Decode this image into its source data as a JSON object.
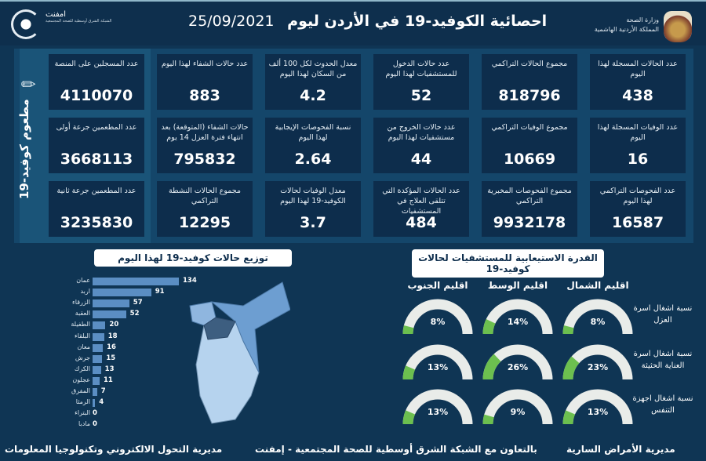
{
  "header": {
    "title": "احصائية الكوفيد-19 في الأردن ليوم",
    "date": "25/09/2021",
    "ministry_line1": "وزارة الصحة",
    "ministry_line2": "المملكة الأردنية الهاشمية",
    "partner_name": "امفنت",
    "partner_sub": "الشبكة الشرق أوسطية للصحة المجتمعية"
  },
  "vaccine_label": "مطعوم كوفيد-19",
  "cards": [
    {
      "label": "عدد الحالات المسجلة لهذا اليوم",
      "value": "438"
    },
    {
      "label": "مجموع الحالات التراكمي",
      "value": "818796"
    },
    {
      "label": "عدد حالات الدخول للمستشفيات لهذا اليوم",
      "value": "52"
    },
    {
      "label": "معدل الحدوث لكل 100 ألف من السكان لهذا اليوم",
      "value": "4.2"
    },
    {
      "label": "عدد حالات الشفاء لهذا اليوم",
      "value": "883"
    },
    {
      "label": "عدد المسجلين على المنصة",
      "value": "4110070"
    },
    {
      "label": "عدد الوفيات المسجلة لهذا اليوم",
      "value": "16"
    },
    {
      "label": "مجموع الوفيات التراكمي",
      "value": "10669"
    },
    {
      "label": "عدد حالات الخروج من مستشفيات لهذا اليوم",
      "value": "44"
    },
    {
      "label": "نسبة الفحوصات الإيجابية لهذا اليوم",
      "value": "2.64"
    },
    {
      "label": "حالات الشفاء (المتوقعة) بعد انتهاء فترة العزل 14 يوم",
      "value": "795832"
    },
    {
      "label": "عدد المطعمين جرعة أولى",
      "value": "3668113"
    },
    {
      "label": "عدد الفحوصات التراكمي لهذا اليوم",
      "value": "16587"
    },
    {
      "label": "مجموع الفحوصات المخبرية التراكمي",
      "value": "9932178"
    },
    {
      "label": "عدد الحالات المؤكدة التي تتلقى العلاج في المستشفيات",
      "value": "484"
    },
    {
      "label": "معدل الوفيات لحالات الكوفيد-19 لهذا اليوم",
      "value": "3.7"
    },
    {
      "label": "مجموع الحالات النشطة التراكمي",
      "value": "12295"
    },
    {
      "label": "عدد المطعمين جرعة ثانية",
      "value": "3235830"
    }
  ],
  "distribution": {
    "title": "توزيع حالات كوفيد-19 لهذا اليوم",
    "chart_data": {
      "type": "bar",
      "orientation": "horizontal",
      "categories": [
        "عمان",
        "اربد",
        "الزرقاء",
        "العقبة",
        "الطفيلة",
        "البلقاء",
        "معان",
        "جرش",
        "الكرك",
        "عجلون",
        "المفرق",
        "الرمثا",
        "البتراء",
        "مادبا"
      ],
      "values": [
        134,
        91,
        57,
        52,
        20,
        18,
        16,
        15,
        13,
        11,
        7,
        4,
        0,
        0
      ],
      "color": "#5b8ec3"
    }
  },
  "capacity": {
    "title": "القدرة الاستيعابية للمستشفيات لحالات كوفيد-19",
    "regions": [
      "اقليم الشمال",
      "اقليم الوسط",
      "اقليم الجنوب"
    ],
    "rows": [
      {
        "label": "نسبة اشغال اسرة العزل",
        "values": [
          8,
          14,
          8
        ]
      },
      {
        "label": "نسبة اشغال اسرة العناية الحثيثة",
        "values": [
          23,
          26,
          13
        ]
      },
      {
        "label": "نسبة اشغال اجهزة التنفس",
        "values": [
          13,
          9,
          13
        ]
      }
    ],
    "fill_color": "#6cbf4f",
    "track_color": "#e9ece9"
  },
  "footer": {
    "left": "مديرية التحول الالكتروني وتكنولوجيا المعلومات",
    "middle": "بالتعاون مع الشبكة الشرق أوسطية للصحة المجتمعية - إمفنت",
    "right": "مديرية الأمراض السارية"
  }
}
